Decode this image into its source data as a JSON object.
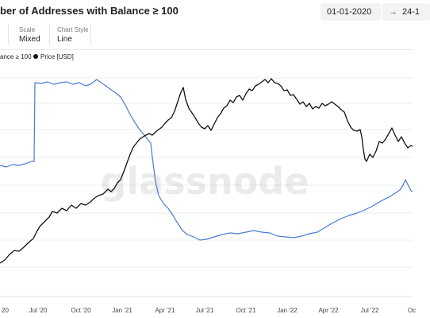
{
  "header": {
    "title": "ber of Addresses with Balance ≥ 100",
    "date_start": "01-01-2020",
    "date_end": "24-1",
    "arrow": "→"
  },
  "controls": [
    {
      "label": "Scale",
      "value": "Mixed"
    },
    {
      "label": "Chart Style",
      "value": "Line"
    }
  ],
  "legend": [
    {
      "label": "ance ≥ 100",
      "color": "#4a7bd1"
    },
    {
      "label": "Price [USD]",
      "color": "#111111",
      "icon": "dot"
    }
  ],
  "watermark": "glassnode",
  "chart_data": {
    "type": "line",
    "x_ticks": [
      "20",
      "Jul '20",
      "Oct '20",
      "Jan '21",
      "Apr '21",
      "Jul '21",
      "Oct '21",
      "Jan '22",
      "Apr '22",
      "Jul '22",
      "Oc"
    ],
    "series": [
      {
        "name": "ance ≥ 100",
        "color": "#4a7bd1",
        "axis": "left",
        "points": [
          [
            0,
            208
          ],
          [
            8,
            210
          ],
          [
            16,
            207
          ],
          [
            24,
            208
          ],
          [
            32,
            206
          ],
          [
            40,
            203
          ],
          [
            43,
            203
          ],
          [
            44,
            104
          ],
          [
            52,
            105
          ],
          [
            60,
            103
          ],
          [
            68,
            106
          ],
          [
            76,
            104
          ],
          [
            84,
            103
          ],
          [
            92,
            106
          ],
          [
            100,
            104
          ],
          [
            108,
            108
          ],
          [
            114,
            106
          ],
          [
            118,
            103
          ],
          [
            122,
            100
          ],
          [
            126,
            103
          ],
          [
            132,
            107
          ],
          [
            140,
            113
          ],
          [
            146,
            117
          ],
          [
            152,
            122
          ],
          [
            158,
            132
          ],
          [
            164,
            144
          ],
          [
            170,
            154
          ],
          [
            176,
            163
          ],
          [
            182,
            170
          ],
          [
            186,
            175
          ],
          [
            190,
            180
          ],
          [
            192,
            198
          ],
          [
            196,
            228
          ],
          [
            200,
            246
          ],
          [
            206,
            256
          ],
          [
            212,
            262
          ],
          [
            218,
            271
          ],
          [
            224,
            281
          ],
          [
            230,
            290
          ],
          [
            236,
            295
          ],
          [
            244,
            298
          ],
          [
            252,
            302
          ],
          [
            260,
            301
          ],
          [
            270,
            298
          ],
          [
            280,
            295
          ],
          [
            290,
            293
          ],
          [
            300,
            294
          ],
          [
            310,
            292
          ],
          [
            320,
            290
          ],
          [
            330,
            292
          ],
          [
            340,
            293
          ],
          [
            350,
            297
          ],
          [
            360,
            298
          ],
          [
            370,
            299
          ],
          [
            380,
            297
          ],
          [
            390,
            294
          ],
          [
            400,
            292
          ],
          [
            410,
            286
          ],
          [
            420,
            280
          ],
          [
            430,
            275
          ],
          [
            440,
            271
          ],
          [
            450,
            268
          ],
          [
            460,
            264
          ],
          [
            470,
            259
          ],
          [
            480,
            253
          ],
          [
            490,
            248
          ],
          [
            498,
            243
          ],
          [
            504,
            239
          ],
          [
            508,
            233
          ],
          [
            511,
            226
          ],
          [
            514,
            232
          ],
          [
            518,
            240
          ],
          [
            520,
            241
          ]
        ]
      },
      {
        "name": "Price [USD]",
        "color": "#111111",
        "axis": "right",
        "points": [
          [
            0,
            331
          ],
          [
            6,
            327
          ],
          [
            12,
            320
          ],
          [
            18,
            315
          ],
          [
            24,
            316
          ],
          [
            30,
            311
          ],
          [
            36,
            305
          ],
          [
            42,
            300
          ],
          [
            46,
            292
          ],
          [
            50,
            285
          ],
          [
            56,
            279
          ],
          [
            62,
            273
          ],
          [
            66,
            266
          ],
          [
            72,
            268
          ],
          [
            78,
            262
          ],
          [
            84,
            265
          ],
          [
            90,
            258
          ],
          [
            96,
            262
          ],
          [
            102,
            256
          ],
          [
            108,
            258
          ],
          [
            114,
            254
          ],
          [
            118,
            250
          ],
          [
            124,
            246
          ],
          [
            130,
            244
          ],
          [
            136,
            238
          ],
          [
            140,
            241
          ],
          [
            144,
            237
          ],
          [
            148,
            230
          ],
          [
            152,
            226
          ],
          [
            156,
            216
          ],
          [
            160,
            205
          ],
          [
            164,
            194
          ],
          [
            168,
            185
          ],
          [
            172,
            180
          ],
          [
            176,
            175
          ],
          [
            182,
            171
          ],
          [
            188,
            168
          ],
          [
            192,
            170
          ],
          [
            196,
            166
          ],
          [
            200,
            163
          ],
          [
            204,
            160
          ],
          [
            208,
            155
          ],
          [
            212,
            151
          ],
          [
            216,
            148
          ],
          [
            220,
            140
          ],
          [
            224,
            128
          ],
          [
            228,
            116
          ],
          [
            231,
            110
          ],
          [
            234,
            125
          ],
          [
            238,
            136
          ],
          [
            242,
            142
          ],
          [
            246,
            148
          ],
          [
            250,
            155
          ],
          [
            254,
            160
          ],
          [
            258,
            162
          ],
          [
            262,
            158
          ],
          [
            266,
            164
          ],
          [
            270,
            156
          ],
          [
            274,
            148
          ],
          [
            278,
            143
          ],
          [
            282,
            136
          ],
          [
            286,
            133
          ],
          [
            290,
            126
          ],
          [
            294,
            129
          ],
          [
            298,
            122
          ],
          [
            302,
            120
          ],
          [
            306,
            126
          ],
          [
            310,
            118
          ],
          [
            314,
            112
          ],
          [
            318,
            114
          ],
          [
            322,
            108
          ],
          [
            326,
            106
          ],
          [
            330,
            103
          ],
          [
            334,
            100
          ],
          [
            338,
            104
          ],
          [
            342,
            99
          ],
          [
            346,
            104
          ],
          [
            350,
            105
          ],
          [
            354,
            108
          ],
          [
            358,
            114
          ],
          [
            362,
            113
          ],
          [
            366,
            120
          ],
          [
            370,
            119
          ],
          [
            374,
            125
          ],
          [
            378,
            131
          ],
          [
            382,
            128
          ],
          [
            386,
            134
          ],
          [
            390,
            130
          ],
          [
            394,
            137
          ],
          [
            398,
            134
          ],
          [
            402,
            136
          ],
          [
            406,
            130
          ],
          [
            410,
            133
          ],
          [
            414,
            131
          ],
          [
            418,
            128
          ],
          [
            422,
            131
          ],
          [
            426,
            134
          ],
          [
            430,
            138
          ],
          [
            434,
            141
          ],
          [
            438,
            152
          ],
          [
            442,
            160
          ],
          [
            446,
            164
          ],
          [
            450,
            165
          ],
          [
            454,
            163
          ],
          [
            456,
            172
          ],
          [
            458,
            188
          ],
          [
            460,
            200
          ],
          [
            462,
            203
          ],
          [
            466,
            194
          ],
          [
            470,
            198
          ],
          [
            474,
            190
          ],
          [
            478,
            178
          ],
          [
            482,
            180
          ],
          [
            486,
            175
          ],
          [
            490,
            168
          ],
          [
            494,
            161
          ],
          [
            498,
            170
          ],
          [
            502,
            178
          ],
          [
            506,
            172
          ],
          [
            510,
            180
          ],
          [
            514,
            186
          ],
          [
            518,
            183
          ],
          [
            520,
            184
          ]
        ]
      }
    ]
  }
}
